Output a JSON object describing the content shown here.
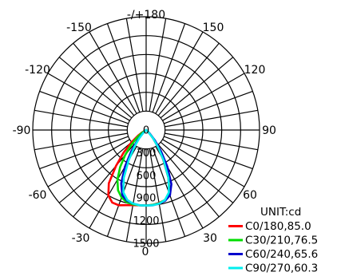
{
  "chart_data": {
    "type": "polar",
    "unit_label": "UNIT:cd",
    "angle_labels": [
      "-/+180",
      "150",
      "120",
      "90",
      "60",
      "30",
      "0",
      "-30",
      "-60",
      "-90",
      "-120",
      "-150"
    ],
    "radial_ticks": [
      0,
      300,
      600,
      900,
      1200,
      1500
    ],
    "radial_tick_labels": [
      "0",
      "300",
      "600",
      "900",
      "1200",
      "1500"
    ],
    "rmax": 1500,
    "grid": true,
    "angles": [
      0,
      5,
      10,
      15,
      20,
      25,
      30,
      35,
      40,
      45,
      50,
      55,
      60,
      70,
      80,
      90
    ],
    "series": [
      {
        "name": "C0/180,85.0",
        "color": "#ff0000",
        "right": [
          1000,
          995,
          980,
          960,
          900,
          700,
          450,
          260,
          140,
          60,
          20,
          0,
          0,
          0,
          0,
          0
        ],
        "left": [
          1000,
          1000,
          1010,
          1030,
          1060,
          1060,
          1000,
          860,
          620,
          420,
          250,
          130,
          60,
          0,
          0,
          0
        ]
      },
      {
        "name": "C30/210,76.5",
        "color": "#00dd00",
        "right": [
          1000,
          995,
          985,
          960,
          900,
          700,
          470,
          300,
          160,
          60,
          20,
          0,
          0,
          0,
          0,
          0
        ],
        "left": [
          1000,
          1000,
          1000,
          990,
          950,
          880,
          760,
          600,
          430,
          280,
          160,
          80,
          20,
          0,
          0,
          0
        ]
      },
      {
        "name": "C60/240,65.6",
        "color": "#0000cc",
        "right": [
          1000,
          1000,
          990,
          970,
          920,
          790,
          560,
          340,
          180,
          70,
          20,
          0,
          0,
          0,
          0,
          0
        ],
        "left": [
          1000,
          1000,
          990,
          970,
          920,
          780,
          560,
          340,
          180,
          70,
          20,
          0,
          0,
          0,
          0,
          0
        ]
      },
      {
        "name": "C90/270,60.3",
        "color": "#00eeee",
        "right": [
          1000,
          1000,
          990,
          960,
          880,
          700,
          460,
          270,
          140,
          50,
          10,
          0,
          0,
          0,
          0,
          0
        ],
        "left": [
          1000,
          1000,
          990,
          960,
          880,
          700,
          460,
          270,
          140,
          50,
          10,
          0,
          0,
          0,
          0,
          0
        ]
      }
    ]
  }
}
